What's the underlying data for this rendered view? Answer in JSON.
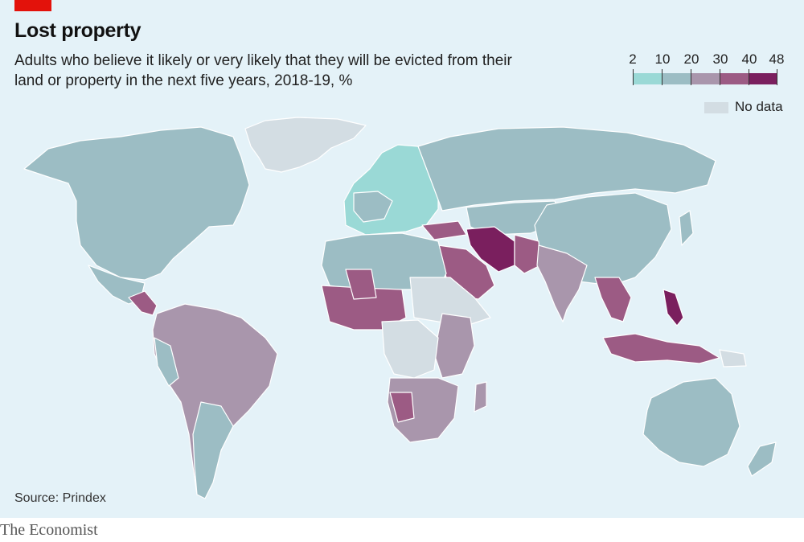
{
  "header": {
    "title": "Lost property",
    "subtitle": "Adults who believe it likely or very likely that they will be evicted from their land or property in the next five years, 2018-19, %"
  },
  "legend": {
    "ticks": [
      "2",
      "10",
      "20",
      "30",
      "40",
      "48"
    ],
    "bins": [
      {
        "range": [
          2,
          10
        ],
        "color": "#9ad9d6"
      },
      {
        "range": [
          10,
          20
        ],
        "color": "#9cbdc4"
      },
      {
        "range": [
          20,
          30
        ],
        "color": "#a996ac"
      },
      {
        "range": [
          30,
          40
        ],
        "color": "#9c5b84"
      },
      {
        "range": [
          40,
          48
        ],
        "color": "#7a1f5e"
      }
    ],
    "no_data_label": "No data",
    "no_data_color": "#d3dde3"
  },
  "colors": {
    "background": "#e4f2f8",
    "brand_red": "#e3120b",
    "border": "#ffffff"
  },
  "source": "Source: Prindex",
  "brand": "The Economist"
}
